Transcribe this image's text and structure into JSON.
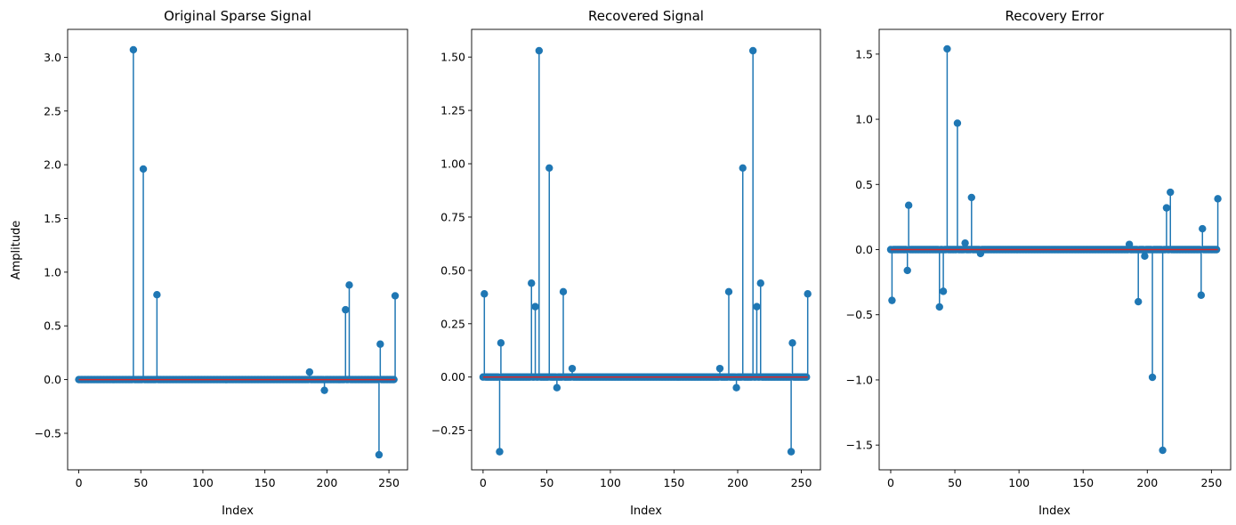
{
  "figure": {
    "stem_color": "#1f77b4",
    "baseline_color": "#d62728"
  },
  "chart_data": [
    {
      "type": "stem",
      "title": "Original Sparse Signal",
      "xlabel": "Index",
      "ylabel": "Amplitude",
      "xlim": [
        -9,
        265
      ],
      "ylim": [
        -0.84,
        3.26
      ],
      "xticks": [
        0,
        50,
        100,
        150,
        200,
        250
      ],
      "yticks": [
        -0.5,
        0.0,
        0.5,
        1.0,
        1.5,
        2.0,
        2.5,
        3.0
      ],
      "xtick_labels": [
        "0",
        "50",
        "100",
        "150",
        "200",
        "250"
      ],
      "ytick_labels": [
        "−0.5",
        "0.0",
        "0.5",
        "1.0",
        "1.5",
        "2.0",
        "2.5",
        "3.0"
      ],
      "n": 256,
      "nonzero": [
        {
          "x": 44,
          "y": 3.07
        },
        {
          "x": 52,
          "y": 1.96
        },
        {
          "x": 63,
          "y": 0.79
        },
        {
          "x": 186,
          "y": 0.07
        },
        {
          "x": 198,
          "y": -0.1
        },
        {
          "x": 215,
          "y": 0.65
        },
        {
          "x": 218,
          "y": 0.88
        },
        {
          "x": 242,
          "y": -0.7
        },
        {
          "x": 243,
          "y": 0.33
        },
        {
          "x": 255,
          "y": 0.78
        }
      ]
    },
    {
      "type": "stem",
      "title": "Recovered Signal",
      "xlabel": "Index",
      "ylabel": "",
      "xlim": [
        -9,
        265
      ],
      "ylim": [
        -0.435,
        1.63
      ],
      "xticks": [
        0,
        50,
        100,
        150,
        200,
        250
      ],
      "yticks": [
        -0.25,
        0.0,
        0.25,
        0.5,
        0.75,
        1.0,
        1.25,
        1.5
      ],
      "xtick_labels": [
        "0",
        "50",
        "100",
        "150",
        "200",
        "250"
      ],
      "ytick_labels": [
        "−0.25",
        "0.00",
        "0.25",
        "0.50",
        "0.75",
        "1.00",
        "1.25",
        "1.50"
      ],
      "n": 256,
      "nonzero": [
        {
          "x": 1,
          "y": 0.39
        },
        {
          "x": 13,
          "y": -0.35
        },
        {
          "x": 14,
          "y": 0.16
        },
        {
          "x": 38,
          "y": 0.44
        },
        {
          "x": 41,
          "y": 0.33
        },
        {
          "x": 44,
          "y": 1.53
        },
        {
          "x": 52,
          "y": 0.98
        },
        {
          "x": 58,
          "y": -0.05
        },
        {
          "x": 63,
          "y": 0.4
        },
        {
          "x": 70,
          "y": 0.04
        },
        {
          "x": 186,
          "y": 0.04
        },
        {
          "x": 193,
          "y": 0.4
        },
        {
          "x": 199,
          "y": -0.05
        },
        {
          "x": 204,
          "y": 0.98
        },
        {
          "x": 212,
          "y": 1.53
        },
        {
          "x": 215,
          "y": 0.33
        },
        {
          "x": 218,
          "y": 0.44
        },
        {
          "x": 242,
          "y": -0.35
        },
        {
          "x": 243,
          "y": 0.16
        },
        {
          "x": 255,
          "y": 0.39
        }
      ]
    },
    {
      "type": "stem",
      "title": "Recovery Error",
      "xlabel": "Index",
      "ylabel": "",
      "xlim": [
        -9,
        265
      ],
      "ylim": [
        -1.69,
        1.69
      ],
      "xticks": [
        0,
        50,
        100,
        150,
        200,
        250
      ],
      "yticks": [
        -1.5,
        -1.0,
        -0.5,
        0.0,
        0.5,
        1.0,
        1.5
      ],
      "xtick_labels": [
        "0",
        "50",
        "100",
        "150",
        "200",
        "250"
      ],
      "ytick_labels": [
        "−1.5",
        "−1.0",
        "−0.5",
        "0.0",
        "0.5",
        "1.0",
        "1.5"
      ],
      "n": 256,
      "nonzero": [
        {
          "x": 1,
          "y": -0.39
        },
        {
          "x": 13,
          "y": -0.16
        },
        {
          "x": 14,
          "y": 0.34
        },
        {
          "x": 38,
          "y": -0.44
        },
        {
          "x": 41,
          "y": -0.32
        },
        {
          "x": 44,
          "y": 1.54
        },
        {
          "x": 52,
          "y": 0.97
        },
        {
          "x": 58,
          "y": 0.05
        },
        {
          "x": 63,
          "y": 0.4
        },
        {
          "x": 70,
          "y": -0.03
        },
        {
          "x": 186,
          "y": 0.04
        },
        {
          "x": 193,
          "y": -0.4
        },
        {
          "x": 198,
          "y": -0.05
        },
        {
          "x": 204,
          "y": -0.98
        },
        {
          "x": 212,
          "y": -1.54
        },
        {
          "x": 215,
          "y": 0.32
        },
        {
          "x": 218,
          "y": 0.44
        },
        {
          "x": 242,
          "y": -0.35
        },
        {
          "x": 243,
          "y": 0.16
        },
        {
          "x": 255,
          "y": 0.39
        }
      ]
    }
  ]
}
